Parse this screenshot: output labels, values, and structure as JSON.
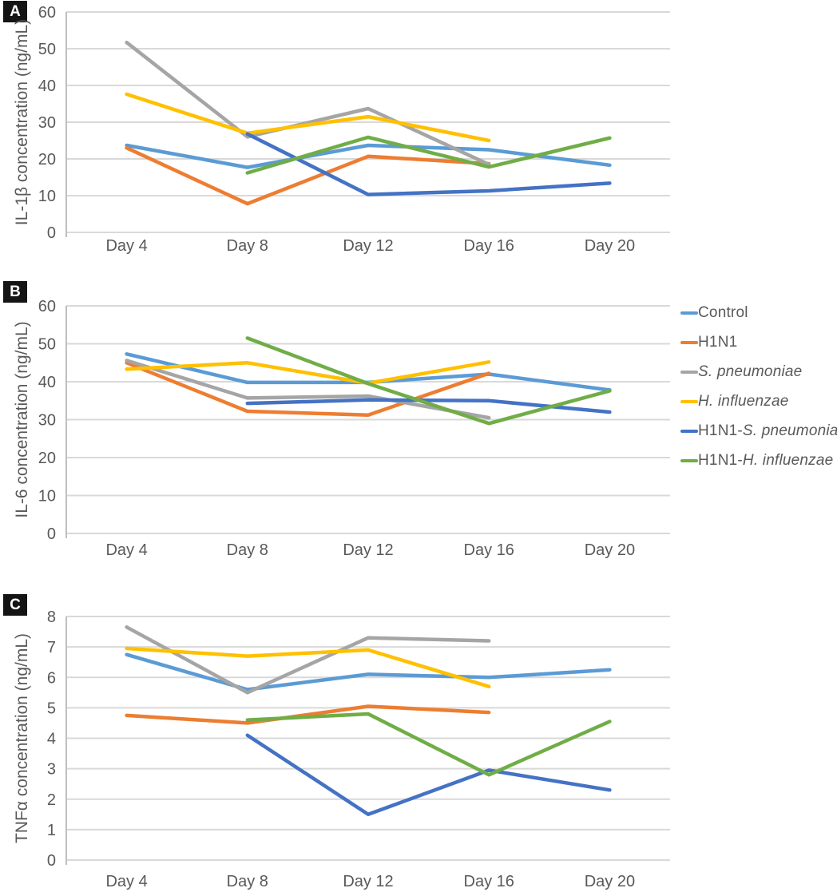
{
  "panels": [
    {
      "label": "A"
    },
    {
      "label": "B"
    },
    {
      "label": "C"
    }
  ],
  "colors": {
    "control": "#5B9BD5",
    "h1n1": "#ED7D31",
    "s_pneumoniae": "#A5A5A5",
    "h_influenzae": "#FFC000",
    "h1n1_s_pneumoniae": "#4472C4",
    "h1n1_h_influenzae": "#70AD47",
    "gridline": "#D9D9D9",
    "axis_line": "#BFBFBF",
    "tick_text": "#595959",
    "panel_badge_bg": "#141414"
  },
  "legend": {
    "position": "right-of-panel-B",
    "items": [
      {
        "prefix": "Control",
        "italic": "",
        "color": "#5B9BD5"
      },
      {
        "prefix": "H1N1",
        "italic": "",
        "color": "#ED7D31"
      },
      {
        "prefix": "",
        "italic": "S. pneumoniae",
        "color": "#A5A5A5"
      },
      {
        "prefix": "",
        "italic": "H. influenzae",
        "color": "#FFC000"
      },
      {
        "prefix": "H1N1-",
        "italic": "S. pneumoniae",
        "color": "#4472C4"
      },
      {
        "prefix": "H1N1-",
        "italic": "H. influenzae",
        "color": "#70AD47"
      }
    ]
  },
  "chart_data": [
    {
      "type": "line",
      "panel": "A",
      "title": "",
      "xlabel": "",
      "ylabel": "IL-1β concentration (ng/mL)",
      "ylim": [
        0,
        60
      ],
      "ytick_step": 10,
      "grid": true,
      "categories": [
        "Day 4",
        "Day 8",
        "Day 12",
        "Day 16",
        "Day 20"
      ],
      "series": [
        {
          "name": "Control",
          "color": "#5B9BD5",
          "values": [
            23.7,
            17.7,
            23.7,
            22.5,
            18.3
          ]
        },
        {
          "name": "H1N1",
          "color": "#ED7D31",
          "values": [
            23.0,
            7.8,
            20.7,
            18.7,
            null
          ]
        },
        {
          "name": "S. pneumoniae",
          "color": "#A5A5A5",
          "values": [
            51.7,
            26.0,
            33.7,
            18.5,
            null
          ]
        },
        {
          "name": "H. influenzae",
          "color": "#FFC000",
          "values": [
            37.6,
            27.0,
            31.5,
            25.0,
            null
          ]
        },
        {
          "name": "H1N1-S. pneumoniae",
          "color": "#4472C4",
          "values": [
            null,
            26.8,
            10.3,
            11.3,
            13.4
          ]
        },
        {
          "name": "H1N1-H. influenzae",
          "color": "#70AD47",
          "values": [
            null,
            16.2,
            25.9,
            17.8,
            25.7
          ]
        }
      ]
    },
    {
      "type": "line",
      "panel": "B",
      "title": "",
      "xlabel": "",
      "ylabel": "IL-6 concentration (ng/mL)",
      "ylim": [
        0,
        60
      ],
      "ytick_step": 10,
      "grid": true,
      "categories": [
        "Day 4",
        "Day 8",
        "Day 12",
        "Day 16",
        "Day 20"
      ],
      "series": [
        {
          "name": "Control",
          "color": "#5B9BD5",
          "values": [
            47.3,
            39.8,
            39.8,
            42.0,
            37.8
          ]
        },
        {
          "name": "H1N1",
          "color": "#ED7D31",
          "values": [
            45.0,
            32.2,
            31.2,
            42.2,
            null
          ]
        },
        {
          "name": "S. pneumoniae",
          "color": "#A5A5A5",
          "values": [
            45.6,
            35.7,
            36.2,
            30.5,
            null
          ]
        },
        {
          "name": "H. influenzae",
          "color": "#FFC000",
          "values": [
            43.3,
            45.0,
            39.6,
            45.2,
            null
          ]
        },
        {
          "name": "H1N1-S. pneumoniae",
          "color": "#4472C4",
          "values": [
            null,
            34.3,
            35.2,
            35.0,
            32.0
          ]
        },
        {
          "name": "H1N1-H. influenzae",
          "color": "#70AD47",
          "values": [
            null,
            51.5,
            39.5,
            29.0,
            37.6
          ]
        }
      ]
    },
    {
      "type": "line",
      "panel": "C",
      "title": "",
      "xlabel": "",
      "ylabel": "TNFα concentration (ng/mL)",
      "ylim": [
        0,
        8
      ],
      "ytick_step": 1,
      "grid": true,
      "categories": [
        "Day 4",
        "Day 8",
        "Day 12",
        "Day 16",
        "Day 20"
      ],
      "series": [
        {
          "name": "Control",
          "color": "#5B9BD5",
          "values": [
            6.75,
            5.6,
            6.1,
            6.0,
            6.25
          ]
        },
        {
          "name": "H1N1",
          "color": "#ED7D31",
          "values": [
            4.75,
            4.5,
            5.05,
            4.85,
            null
          ]
        },
        {
          "name": "S. pneumoniae",
          "color": "#A5A5A5",
          "values": [
            7.65,
            5.5,
            7.3,
            7.2,
            null
          ]
        },
        {
          "name": "H. influenzae",
          "color": "#FFC000",
          "values": [
            6.95,
            6.7,
            6.9,
            5.7,
            null
          ]
        },
        {
          "name": "H1N1-S. pneumoniae",
          "color": "#4472C4",
          "values": [
            null,
            4.1,
            1.5,
            2.95,
            2.3
          ]
        },
        {
          "name": "H1N1-H. influenzae",
          "color": "#70AD47",
          "values": [
            null,
            4.6,
            4.8,
            2.8,
            4.55
          ]
        }
      ]
    }
  ]
}
